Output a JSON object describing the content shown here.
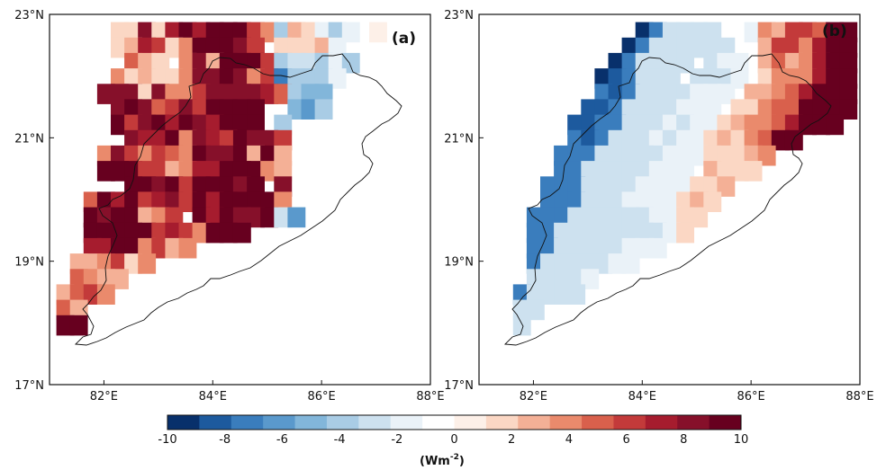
{
  "panels": [
    {
      "label": "(a)",
      "lat_ticks": [
        "17°N",
        "19°N",
        "21°N",
        "23°N"
      ],
      "lon_ticks": [
        "82°E",
        "84°E",
        "86°E",
        "88°E"
      ],
      "lat_range": [
        17,
        23
      ],
      "lon_range": [
        81,
        88
      ],
      "grid_step_deg": 0.25,
      "grid_origin": {
        "lon": 81.625,
        "lat": 17.625
      },
      "cells": [
        "....................................",
        "...........................HH.......",
        "..............................T.....",
        ".............aaa....TTJJ.a...KK.....",
        "........eeBTgTb.aT...SSZS.gP.JJ.....",
        ".......eLbcgdTa..T..VWZZZ.M.........",
        ".....TBbXhbdeh.e.PV.ccZZOS.M........",
        "......BTXQabefhh.VXEZZ.PJ.M.........",
        ".....fgQ.bfhh.TT.Z.F..TJ.J..........",
        "....RdhecfhihifVcdgVPR.V.bb.........",
        "....bbhbgjgjjjfdQcbVQV.Z...........",
        "....bcgfbdjjjhf.bbbcV..............",
        ".....ecb.dhcjjifQRRPVQ.............",
        "....dbcbbdhhjhdfHPQQV..............",
        "...hhhbhddfhhhhgePMM...............",
        "....hjhefhfjijj..MJQ...............",
        "....ifhigjhgjjj.O..................",
        ".....hggjdhgfjhhf..................",
        "...dhfdfedjhhjcjc..................",
        "...jjjffcdggjjidc..................",
        ".....jjhjfjijhi.h..................",
        "..eigjfghfjgijjjd..................",
        "..jhjjcdfkigjhhjTJ.................",
        "..ijjijfgfdijj.....................",
        "..ggjjdfcd..........................",
        ".ccdfbd.............................",
        ".edcc..............................",
        "cefd...............................",
        "ec.................................",
        "jj.................................",
        "...................................."
      ]
    },
    {
      "label": "(b)",
      "lat_ticks": [
        "17°N",
        "19°N",
        "21°N",
        "23°N"
      ],
      "lon_ticks": [
        "82°E",
        "84°E",
        "86°E",
        "88°E"
      ],
      "lat_range": [
        17,
        23
      ],
      "lon_range": [
        81,
        88
      ],
      "grid_step_deg": 0.25,
      "grid_origin": {
        "lon": 81.625,
        "lat": 17.625
      },
      "cells": [
        "....................................",
        "...........................jjj......",
        "........................ijjjjjj.....",
        "..............NNZS.bPdcdijjjjjj.....",
        "............BGOOOZ.VPhfdgjjjjjj.....",
        "...........BGSRRT..Udcffeijjjjj.....",
        "..........BGRSRRTT..cffdgjijjjjj....",
        ".........BGRSRS.TUU.cecdgjjjjjj.....",
        "........BFGSTS.TTTU.bdddgijjjj......",
        "........GFGRRTTUUV.ccdegjjjj........",
        ".......FFGRSSTUUV.bbdeeijjj.........",
        "......FFGGRSTUTUVbcddegijj..........",
        "......GFGRSTUTUVbcbdeij.............",
        ".....GGGRSSTTUUUbbbcd...............",
        ".....GGRRSTTUUV.cbbb................",
        "....HGGRSTTUUUVbbc..................",
        "....GGHRSTUUUVbcb...................",
        "...HGGRRSSTTUVbb....................",
        "...GGRRSSTTTTUb.....................",
        "...GGRRSTTUVV.......................",
        "...GRRSSTUU.........................",
        "...RRSSU............................",
        "..GRRSS.............................",
        "..RR................................",
        "..S.................................",
        "...................................."
      ]
    }
  ],
  "colorbar": {
    "ticks": [
      "-10",
      "-8",
      "-6",
      "-4",
      "-2",
      "0",
      "2",
      "4",
      "6",
      "8",
      "10"
    ],
    "label_main": "(Wm",
    "label_sup": "-2",
    "label_end": ")",
    "min": -10,
    "max": 10,
    "colors": [
      "#08306b",
      "#1d5a9e",
      "#3a7dbd",
      "#5a99cc",
      "#82b6da",
      "#a9cce5",
      "#cde1ef",
      "#eaf2f8",
      "#ffffff",
      "#fdf0e8",
      "#fbd7c4",
      "#f4b096",
      "#ea8a6c",
      "#d9604c",
      "#c33a3a",
      "#a61c2e",
      "#86102a",
      "#67001f"
    ]
  }
}
